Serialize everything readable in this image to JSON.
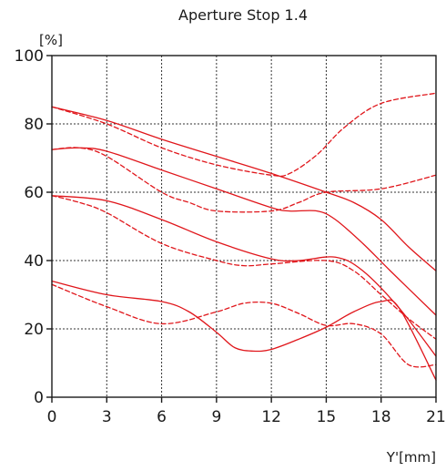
{
  "chart_data": {
    "type": "line",
    "title": "Aperture Stop 1.4",
    "ylabel": "[%]",
    "xlabel": "Y'[mm]",
    "xlim": [
      0,
      21
    ],
    "ylim": [
      0,
      100
    ],
    "xticks": [
      0,
      3,
      6,
      9,
      12,
      15,
      18,
      21
    ],
    "yticks": [
      0,
      20,
      40,
      60,
      80,
      100
    ],
    "xtick_labels": [
      "0",
      "3",
      "6",
      "9",
      "12",
      "15",
      "18",
      "21"
    ],
    "ytick_labels": [
      "0",
      "20",
      "40",
      "60",
      "80",
      "100"
    ],
    "grid": true,
    "legend": "none",
    "line_color": "#e0161b",
    "series": [
      {
        "style": "solid",
        "x": [
          0,
          3,
          6,
          9,
          12,
          15,
          16.5,
          18,
          19.5,
          21
        ],
        "y": [
          85,
          81,
          75.5,
          70.5,
          65.5,
          60,
          57,
          52,
          44,
          37
        ]
      },
      {
        "style": "dashed",
        "x": [
          0,
          3,
          6,
          9,
          12,
          13,
          14.5,
          16,
          18,
          21
        ],
        "y": [
          85,
          80,
          73,
          68,
          65,
          65.5,
          71,
          79,
          86,
          89
        ]
      },
      {
        "style": "solid",
        "x": [
          0,
          1.5,
          3,
          6,
          9,
          12,
          13,
          14.5,
          15.5,
          17,
          18.5,
          21
        ],
        "y": [
          72.5,
          73,
          72,
          66.5,
          61,
          55.5,
          54.5,
          54.5,
          52,
          45,
          37,
          24
        ]
      },
      {
        "style": "dashed",
        "x": [
          0,
          1.5,
          3,
          6,
          7.5,
          9,
          12,
          13.5,
          15,
          18,
          21
        ],
        "y": [
          72.5,
          73,
          70.5,
          60,
          57,
          54.5,
          54.5,
          57,
          60,
          61,
          65
        ]
      },
      {
        "style": "solid",
        "x": [
          0,
          3,
          6,
          9,
          12,
          13.5,
          15.5,
          17,
          19,
          21
        ],
        "y": [
          59,
          57.5,
          52,
          45.5,
          40.5,
          40,
          41,
          37,
          26,
          12
        ]
      },
      {
        "style": "dashed",
        "x": [
          0,
          1.5,
          3,
          6,
          9,
          10.5,
          12,
          15,
          16.5,
          18,
          19.5,
          21
        ],
        "y": [
          59,
          57,
          54,
          45,
          40,
          38.5,
          39,
          40,
          37,
          30,
          23,
          17
        ]
      },
      {
        "style": "solid",
        "x": [
          0,
          3,
          6,
          7.5,
          9,
          10,
          11,
          12,
          13.5,
          15,
          16.5,
          18,
          19,
          21
        ],
        "y": [
          34,
          30,
          28,
          25,
          19,
          14.5,
          13.5,
          14,
          17,
          20.5,
          25,
          28,
          26,
          5
        ]
      },
      {
        "style": "dashed",
        "x": [
          0,
          3,
          6,
          9,
          10.5,
          12,
          13.5,
          15,
          16.5,
          18,
          19.5,
          21
        ],
        "y": [
          33,
          26.5,
          21.5,
          25,
          27.5,
          27.5,
          24.5,
          21,
          21.5,
          18.5,
          9.5,
          9.5
        ]
      }
    ]
  }
}
